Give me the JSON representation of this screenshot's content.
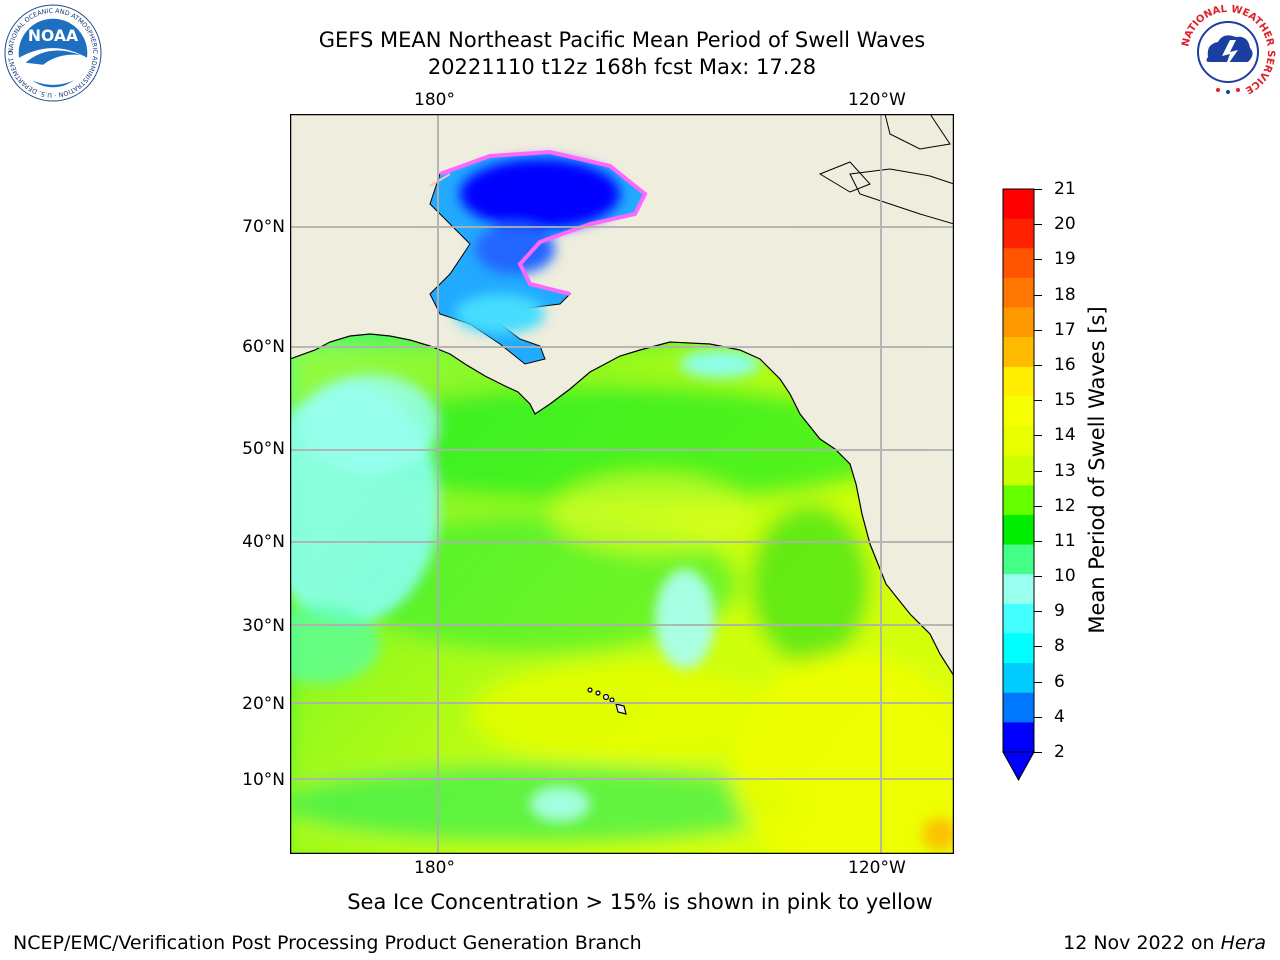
{
  "title": {
    "line1": "GEFS MEAN Northeast Pacific Mean Period of Swell Waves",
    "line2": "20221110 t12z 168h fcst   Max: 17.28"
  },
  "map": {
    "lon_labels_top": [
      "180°",
      "120°W"
    ],
    "lon_labels_bottom": [
      "180°",
      "120°W"
    ],
    "lat_labels": [
      "70°N",
      "60°N",
      "50°N",
      "40°N",
      "30°N",
      "20°N",
      "10°N"
    ],
    "land_color": "#efedde",
    "grid_color": "#b0b0b0"
  },
  "colorbar": {
    "label": "Mean Period of Swell Waves [s]",
    "ticks": [
      "21",
      "20",
      "19",
      "18",
      "17",
      "16",
      "15",
      "14",
      "13",
      "12",
      "11",
      "10",
      "9",
      "8",
      "6",
      "4",
      "2"
    ],
    "colors": [
      "#ff0000",
      "#ff2200",
      "#ff5500",
      "#ff7700",
      "#ff9900",
      "#ffbb00",
      "#ffee00",
      "#f5ff00",
      "#e8ff00",
      "#ccff00",
      "#66ff00",
      "#00ee00",
      "#44ff88",
      "#99ffee",
      "#44ffff",
      "#00ffff",
      "#00ccff",
      "#0077ff",
      "#0000ff"
    ],
    "extend_color": "#0000ff"
  },
  "note": "Sea Ice Concentration > 15% is shown in pink to yellow",
  "footer": {
    "left": "NCEP/EMC/Verification Post Processing Product Generation Branch",
    "right_date": "12 Nov 2022 on ",
    "right_host": "Hera"
  },
  "logos": {
    "noaa": "NOAA",
    "noaa_ring": "NATIONAL OCEANIC AND ATMOSPHERIC ADMINISTRATION · U.S. DEPARTMENT OF COMMERCE ·",
    "nws_ring": "NATIONAL WEATHER SERVICE"
  }
}
